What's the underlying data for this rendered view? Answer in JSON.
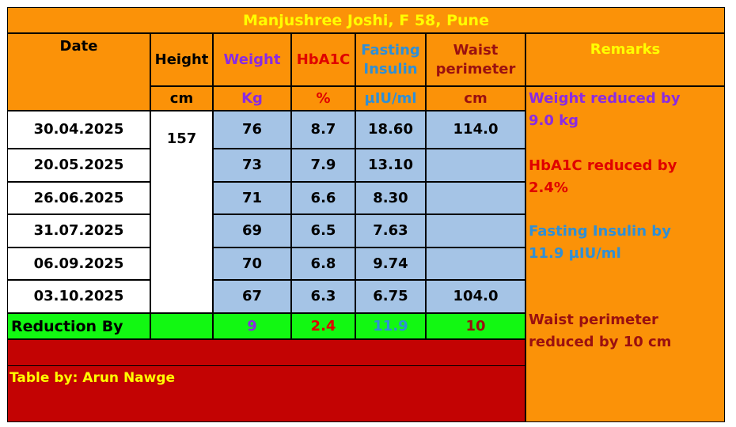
{
  "title": "Manjushree Joshi, F 58, Pune",
  "headers": {
    "date": "Date",
    "height": "Height",
    "weight": "Weight",
    "hba1c": "HbA1C",
    "insulin_l1": "Fasting",
    "insulin_l2": "Insulin",
    "waist_l1": "Waist",
    "waist_l2": "perimeter",
    "remarks": "Remarks"
  },
  "units": {
    "height": "cm",
    "weight": "Kg",
    "hba1c": "%",
    "insulin": "µIU/ml",
    "waist": "cm"
  },
  "height_value": "157",
  "rows": [
    {
      "date": "30.04.2025",
      "weight": "76",
      "hba1c": "8.7",
      "insulin": "18.60",
      "waist": "114.0"
    },
    {
      "date": "20.05.2025",
      "weight": "73",
      "hba1c": "7.9",
      "insulin": "13.10",
      "waist": ""
    },
    {
      "date": "26.06.2025",
      "weight": "71",
      "hba1c": "6.6",
      "insulin": "8.30",
      "waist": ""
    },
    {
      "date": "31.07.2025",
      "weight": "69",
      "hba1c": "6.5",
      "insulin": "7.63",
      "waist": ""
    },
    {
      "date": "06.09.2025",
      "weight": "70",
      "hba1c": "6.8",
      "insulin": "9.74",
      "waist": ""
    },
    {
      "date": "03.10.2025",
      "weight": "67",
      "hba1c": "6.3",
      "insulin": "6.75",
      "waist": "104.0"
    }
  ],
  "reduction": {
    "label": "Reduction By",
    "weight": "9",
    "hba1c": "2.4",
    "insulin": "11.9",
    "waist": "10"
  },
  "remarks": {
    "weight_l1": "Weight reduced by",
    "weight_l2": "9.0 kg",
    "hba1c_l1": "HbA1C reduced by",
    "hba1c_l2": "2.4%",
    "insulin_l1": "Fasting Insulin by",
    "insulin_l2": "11.9 µIU/ml",
    "waist_l1": "Waist perimeter",
    "waist_l2": "reduced by 10 cm"
  },
  "footer": "Table by: Arun Nawge",
  "colors": {
    "header_orange": "#fb9208",
    "title_yellow": "#ffff00",
    "data_blue": "#a5c4e6",
    "reduction_green": "#12f812",
    "footer_red": "#c30303",
    "weight_purple": "#8a2be2",
    "hba1c_red": "#e00000",
    "insulin_blue": "#2f8fd6",
    "waist_dark_red": "#8b1a1a"
  }
}
